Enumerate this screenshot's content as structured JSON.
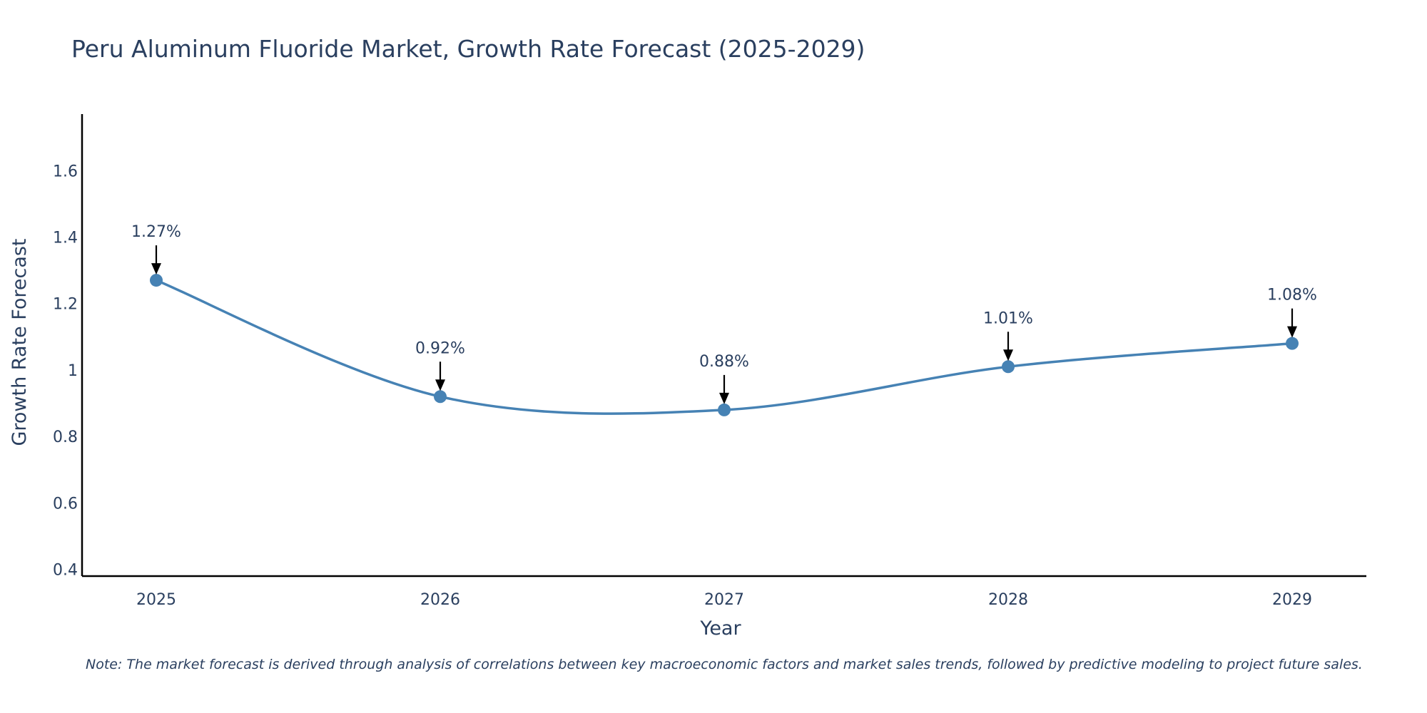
{
  "chart_data": {
    "type": "line",
    "title": "Peru Aluminum Fluoride Market, Growth Rate Forecast (2025-2029)",
    "xlabel": "Year",
    "ylabel": "Growth Rate Forecast",
    "categories": [
      "2025",
      "2026",
      "2027",
      "2028",
      "2029"
    ],
    "series": [
      {
        "name": "Growth Rate Forecast",
        "values": [
          1.27,
          0.92,
          0.88,
          1.01,
          1.08
        ],
        "data_labels": [
          "1.27%",
          "0.92%",
          "0.88%",
          "1.01%",
          "1.08%"
        ],
        "color": "#4682b4"
      }
    ],
    "y_ticks": [
      0.4,
      0.6,
      0.8,
      1,
      1.2,
      1.4,
      1.6
    ],
    "y_tick_labels": [
      "0.4",
      "0.6",
      "0.8",
      "1",
      "1.2",
      "1.4",
      "1.6"
    ],
    "ylim": [
      0.38,
      1.77
    ],
    "grid": false,
    "line_shape": "spline",
    "marker_color": "#4682b4",
    "axis_color": "#000000",
    "text_color": "#2a3f5f"
  },
  "note": "Note: The market forecast is derived through analysis of correlations between key macroeconomic factors and market sales trends, followed by predictive modeling to project future sales."
}
